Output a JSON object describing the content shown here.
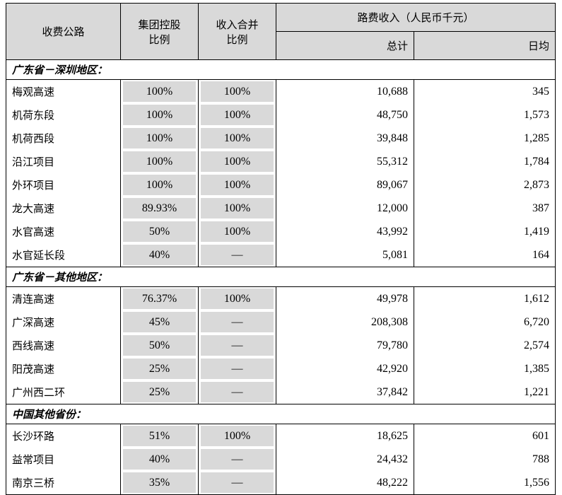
{
  "header": {
    "road": "收费公路",
    "group_ratio": [
      "集团控股",
      "比例"
    ],
    "consolidation_ratio": [
      "收入合并",
      "比例"
    ],
    "toll_income": "路费收入（人民币千元）",
    "total": "总计",
    "daily": "日均"
  },
  "sections": [
    {
      "title": "广东省－深圳地区：",
      "rows": [
        [
          "梅观高速",
          "100%",
          "100%",
          "10,688",
          "345"
        ],
        [
          "机荷东段",
          "100%",
          "100%",
          "48,750",
          "1,573"
        ],
        [
          "机荷西段",
          "100%",
          "100%",
          "39,848",
          "1,285"
        ],
        [
          "沿江项目",
          "100%",
          "100%",
          "55,312",
          "1,784"
        ],
        [
          "外环项目",
          "100%",
          "100%",
          "89,067",
          "2,873"
        ],
        [
          "龙大高速",
          "89.93%",
          "100%",
          "12,000",
          "387"
        ],
        [
          "水官高速",
          "50%",
          "100%",
          "43,992",
          "1,419"
        ],
        [
          "水官延长段",
          "40%",
          "—",
          "5,081",
          "164"
        ]
      ]
    },
    {
      "title": "广东省－其他地区：",
      "rows": [
        [
          "清连高速",
          "76.37%",
          "100%",
          "49,978",
          "1,612"
        ],
        [
          "广深高速",
          "45%",
          "—",
          "208,308",
          "6,720"
        ],
        [
          "西线高速",
          "50%",
          "—",
          "79,780",
          "2,574"
        ],
        [
          "阳茂高速",
          "25%",
          "—",
          "42,920",
          "1,385"
        ],
        [
          "广州西二环",
          "25%",
          "—",
          "37,842",
          "1,221"
        ]
      ]
    },
    {
      "title": "中国其他省份：",
      "rows": [
        [
          "长沙环路",
          "51%",
          "100%",
          "18,625",
          "601"
        ],
        [
          "益常项目",
          "40%",
          "—",
          "24,432",
          "788"
        ],
        [
          "南京三桥",
          "35%",
          "—",
          "48,222",
          "1,556"
        ]
      ]
    }
  ]
}
